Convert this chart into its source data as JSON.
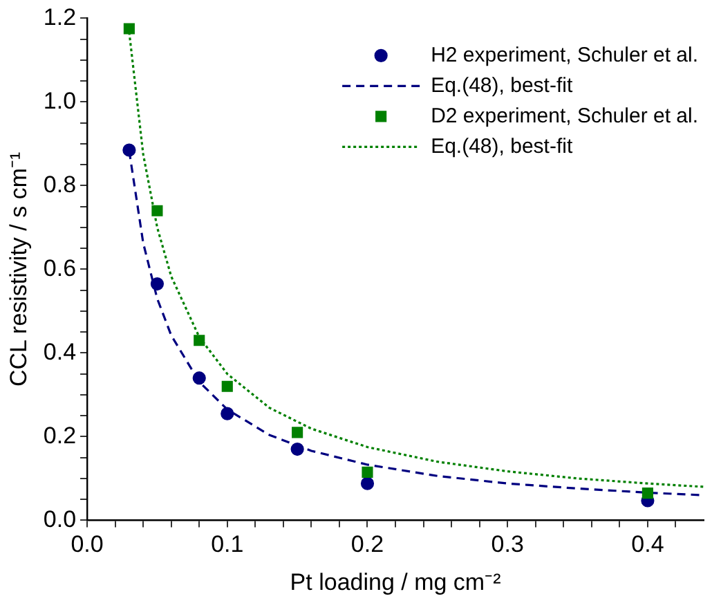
{
  "chart_data": {
    "type": "scatter",
    "xlabel": "Pt loading / mg cm⁻²",
    "ylabel": "CCL resistivity / s cm⁻¹",
    "xlim": [
      0,
      0.44
    ],
    "ylim": [
      0,
      1.2
    ],
    "xticks": [
      {
        "value": 0,
        "label": "0.0"
      },
      {
        "value": 0.02,
        "label": null
      },
      {
        "value": 0.04,
        "label": null
      },
      {
        "value": 0.06,
        "label": null
      },
      {
        "value": 0.08,
        "label": null
      },
      {
        "value": 0.1,
        "label": "0.1"
      },
      {
        "value": 0.12,
        "label": null
      },
      {
        "value": 0.14,
        "label": null
      },
      {
        "value": 0.16,
        "label": null
      },
      {
        "value": 0.18,
        "label": null
      },
      {
        "value": 0.2,
        "label": "0.2"
      },
      {
        "value": 0.22,
        "label": null
      },
      {
        "value": 0.24,
        "label": null
      },
      {
        "value": 0.26,
        "label": null
      },
      {
        "value": 0.28,
        "label": null
      },
      {
        "value": 0.3,
        "label": "0.3"
      },
      {
        "value": 0.32,
        "label": null
      },
      {
        "value": 0.34,
        "label": null
      },
      {
        "value": 0.36,
        "label": null
      },
      {
        "value": 0.38,
        "label": null
      },
      {
        "value": 0.4,
        "label": "0.4"
      },
      {
        "value": 0.42,
        "label": null
      }
    ],
    "yticks": [
      {
        "value": 0,
        "label": "0.0"
      },
      {
        "value": 0.05,
        "label": null
      },
      {
        "value": 0.1,
        "label": null
      },
      {
        "value": 0.15,
        "label": null
      },
      {
        "value": 0.2,
        "label": "0.2"
      },
      {
        "value": 0.25,
        "label": null
      },
      {
        "value": 0.3,
        "label": null
      },
      {
        "value": 0.35,
        "label": null
      },
      {
        "value": 0.4,
        "label": "0.4"
      },
      {
        "value": 0.45,
        "label": null
      },
      {
        "value": 0.5,
        "label": null
      },
      {
        "value": 0.55,
        "label": null
      },
      {
        "value": 0.6,
        "label": "0.6"
      },
      {
        "value": 0.65,
        "label": null
      },
      {
        "value": 0.7,
        "label": null
      },
      {
        "value": 0.75,
        "label": null
      },
      {
        "value": 0.8,
        "label": "0.8"
      },
      {
        "value": 0.85,
        "label": null
      },
      {
        "value": 0.9,
        "label": null
      },
      {
        "value": 0.95,
        "label": null
      },
      {
        "value": 1.0,
        "label": "1.0"
      },
      {
        "value": 1.05,
        "label": null
      },
      {
        "value": 1.1,
        "label": null
      },
      {
        "value": 1.15,
        "label": null
      },
      {
        "value": 1.2,
        "label": "1.2"
      }
    ],
    "grid": false,
    "legend": "top right",
    "series": [
      {
        "name": "H2 experiment, Schuler et al.",
        "marker": "circle",
        "color": "#000080",
        "x": [
          0.03,
          0.05,
          0.08,
          0.1,
          0.15,
          0.2,
          0.4
        ],
        "values": [
          0.885,
          0.565,
          0.34,
          0.255,
          0.17,
          0.088,
          0.047
        ]
      },
      {
        "name": "Eq.(48), best-fit",
        "type": "line",
        "marker": "none",
        "line_style": "dashed",
        "color": "#000080",
        "x": [
          0.03,
          0.04,
          0.05,
          0.06,
          0.08,
          0.1,
          0.13,
          0.16,
          0.2,
          0.25,
          0.3,
          0.35,
          0.4,
          0.44
        ],
        "values": [
          0.883,
          0.663,
          0.53,
          0.442,
          0.331,
          0.265,
          0.204,
          0.166,
          0.133,
          0.106,
          0.088,
          0.076,
          0.066,
          0.06
        ]
      },
      {
        "name": "D2 experiment, Schuler et al.",
        "marker": "square",
        "color": "#008000",
        "x": [
          0.03,
          0.05,
          0.08,
          0.1,
          0.15,
          0.2,
          0.4
        ],
        "values": [
          1.175,
          0.74,
          0.43,
          0.32,
          0.21,
          0.115,
          0.065
        ]
      },
      {
        "name": "Eq.(48), best-fit",
        "type": "line",
        "marker": "none",
        "line_style": "dotted",
        "color": "#008000",
        "x": [
          0.03,
          0.04,
          0.05,
          0.06,
          0.08,
          0.1,
          0.13,
          0.16,
          0.2,
          0.25,
          0.3,
          0.35,
          0.4,
          0.44
        ],
        "values": [
          1.167,
          0.875,
          0.7,
          0.583,
          0.438,
          0.35,
          0.269,
          0.219,
          0.175,
          0.14,
          0.117,
          0.1,
          0.088,
          0.08
        ]
      }
    ]
  }
}
